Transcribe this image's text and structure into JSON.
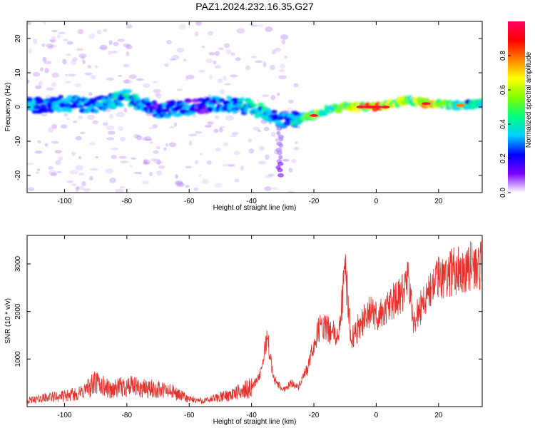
{
  "title": "PAZ1.2024.232.16.35.G27",
  "chart_data": [
    {
      "type": "heatmap",
      "xlabel": "Height of straight line (km)",
      "ylabel": "Frequency (Hz)",
      "xlim": [
        -112,
        34
      ],
      "ylim": [
        -25,
        25
      ],
      "xticks": [
        -100,
        -80,
        -60,
        -40,
        -20,
        0,
        20
      ],
      "yticks": [
        -20,
        -10,
        0,
        10,
        20
      ],
      "colorbar": {
        "label": "Normalized spectral amplitude",
        "range": [
          0,
          1
        ],
        "ticks": [
          "0.0",
          "0.2",
          "0.4",
          "0.6",
          "0.8"
        ],
        "colors": [
          "#ffffff",
          "#7b00ff",
          "#0000ff",
          "#00d0ff",
          "#00ff80",
          "#80ff00",
          "#ffff00",
          "#ff8000",
          "#ff0000",
          "#ff0060"
        ]
      },
      "ridge": [
        {
          "x": -110,
          "f": 0.5,
          "a": 0.3
        },
        {
          "x": -100,
          "f": 1,
          "a": 0.35
        },
        {
          "x": -90,
          "f": 0.5,
          "a": 0.35
        },
        {
          "x": -80,
          "f": 3,
          "a": 0.4
        },
        {
          "x": -70,
          "f": -1,
          "a": 0.3
        },
        {
          "x": -60,
          "f": 0,
          "a": 0.3
        },
        {
          "x": -50,
          "f": 1,
          "a": 0.3
        },
        {
          "x": -40,
          "f": 0,
          "a": 0.45
        },
        {
          "x": -33,
          "f": -3,
          "a": 0.35
        },
        {
          "x": -28,
          "f": -4,
          "a": 0.3
        },
        {
          "x": -20,
          "f": -2.5,
          "a": 0.6
        },
        {
          "x": -15,
          "f": -0.5,
          "a": 0.5
        },
        {
          "x": -10,
          "f": 0,
          "a": 0.6
        },
        {
          "x": 0,
          "f": 0,
          "a": 0.95
        },
        {
          "x": 10,
          "f": 2,
          "a": 0.6
        },
        {
          "x": 16,
          "f": 1,
          "a": 0.85
        },
        {
          "x": 25,
          "f": 0.5,
          "a": 0.55
        },
        {
          "x": 34,
          "f": 1,
          "a": 0.45
        }
      ]
    },
    {
      "type": "line",
      "xlabel": "Height of straight line (km)",
      "ylabel": "SNR (10 * v/v)",
      "xlim": [
        -112,
        34
      ],
      "ylim": [
        0,
        3600
      ],
      "xticks": [
        -100,
        -80,
        -60,
        -40,
        -20,
        0,
        20
      ],
      "yticks": [
        1000,
        2000,
        3000
      ],
      "color": "#e8302a",
      "x": [
        -112,
        -105,
        -100,
        -95,
        -90,
        -85,
        -80,
        -75,
        -70,
        -65,
        -60,
        -55,
        -50,
        -45,
        -40,
        -37,
        -35,
        -33,
        -30,
        -27,
        -25,
        -22,
        -20,
        -18,
        -15,
        -12,
        -10,
        -8,
        -5,
        -2,
        0,
        3,
        5,
        8,
        10,
        12,
        15,
        18,
        20,
        25,
        30,
        34
      ],
      "y": [
        120,
        200,
        220,
        280,
        500,
        350,
        430,
        380,
        360,
        300,
        150,
        120,
        200,
        280,
        400,
        700,
        1500,
        600,
        350,
        500,
        400,
        800,
        1300,
        1700,
        1600,
        1450,
        2900,
        1400,
        1750,
        2000,
        1900,
        2000,
        2200,
        2300,
        2700,
        1800,
        2200,
        2500,
        2700,
        2850,
        2950,
        2950
      ]
    }
  ]
}
